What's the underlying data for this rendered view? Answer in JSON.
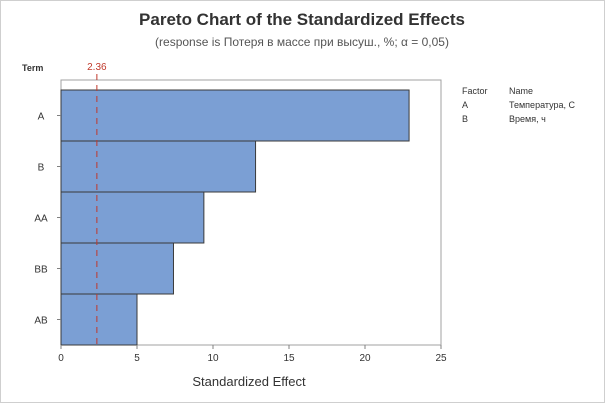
{
  "chart_data": {
    "type": "bar",
    "orientation": "horizontal",
    "title": "Pareto Chart of the Standardized Effects",
    "subtitle": "(response is Потеря в массе при высуш., %; α = 0,05)",
    "xlabel": "Standardized Effect",
    "ylabel": "Term",
    "categories": [
      "A",
      "B",
      "AA",
      "BB",
      "AB"
    ],
    "values": [
      22.9,
      12.8,
      9.4,
      7.4,
      5.0
    ],
    "xlim": [
      0,
      25
    ],
    "xticks": [
      0,
      5,
      10,
      15,
      20,
      25
    ],
    "reference_line": {
      "value": 2.36,
      "label": "2.36",
      "color": "#c0392b"
    },
    "bar_color": "#7b9fd4",
    "bar_edge_color": "#3a3a3a",
    "grid": false,
    "legend": {
      "placement": "right",
      "headers": [
        "Factor",
        "Name"
      ],
      "rows": [
        {
          "factor": "A",
          "name": "Температура, С"
        },
        {
          "factor": "B",
          "name": "Время, ч"
        }
      ]
    }
  }
}
